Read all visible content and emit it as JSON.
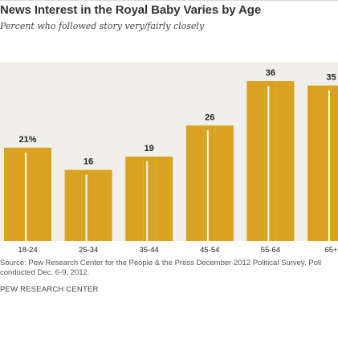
{
  "header": {
    "title": "News Interest in the Royal Baby Varies by Age",
    "subtitle": "Percent who followed story very/fairly closely"
  },
  "chart_data": {
    "type": "bar",
    "categories": [
      "18-24",
      "25-34",
      "35-44",
      "45-54",
      "55-64",
      "65+"
    ],
    "values": [
      21,
      16,
      19,
      26,
      36,
      35
    ],
    "value_labels": [
      "21%",
      "16",
      "19",
      "26",
      "36",
      "35"
    ],
    "title": "News Interest in the Royal Baby Varies by Age",
    "subtitle": "Percent who followed story very/fairly closely",
    "xlabel": "",
    "ylabel": "",
    "ylim": [
      0,
      36
    ],
    "grid": false,
    "colors": {
      "bar": "#d9a221",
      "bar_highlight": "#e8b533",
      "background": "#f0efe9",
      "divider": "#ffffff",
      "label": "#222222"
    }
  },
  "footer": {
    "source": "Source: Pew Research Center for the People & the Press December 2012 Political Survey. Poll conducted Dec. 6-9, 2012.",
    "brand": "PEW RESEARCH CENTER"
  }
}
